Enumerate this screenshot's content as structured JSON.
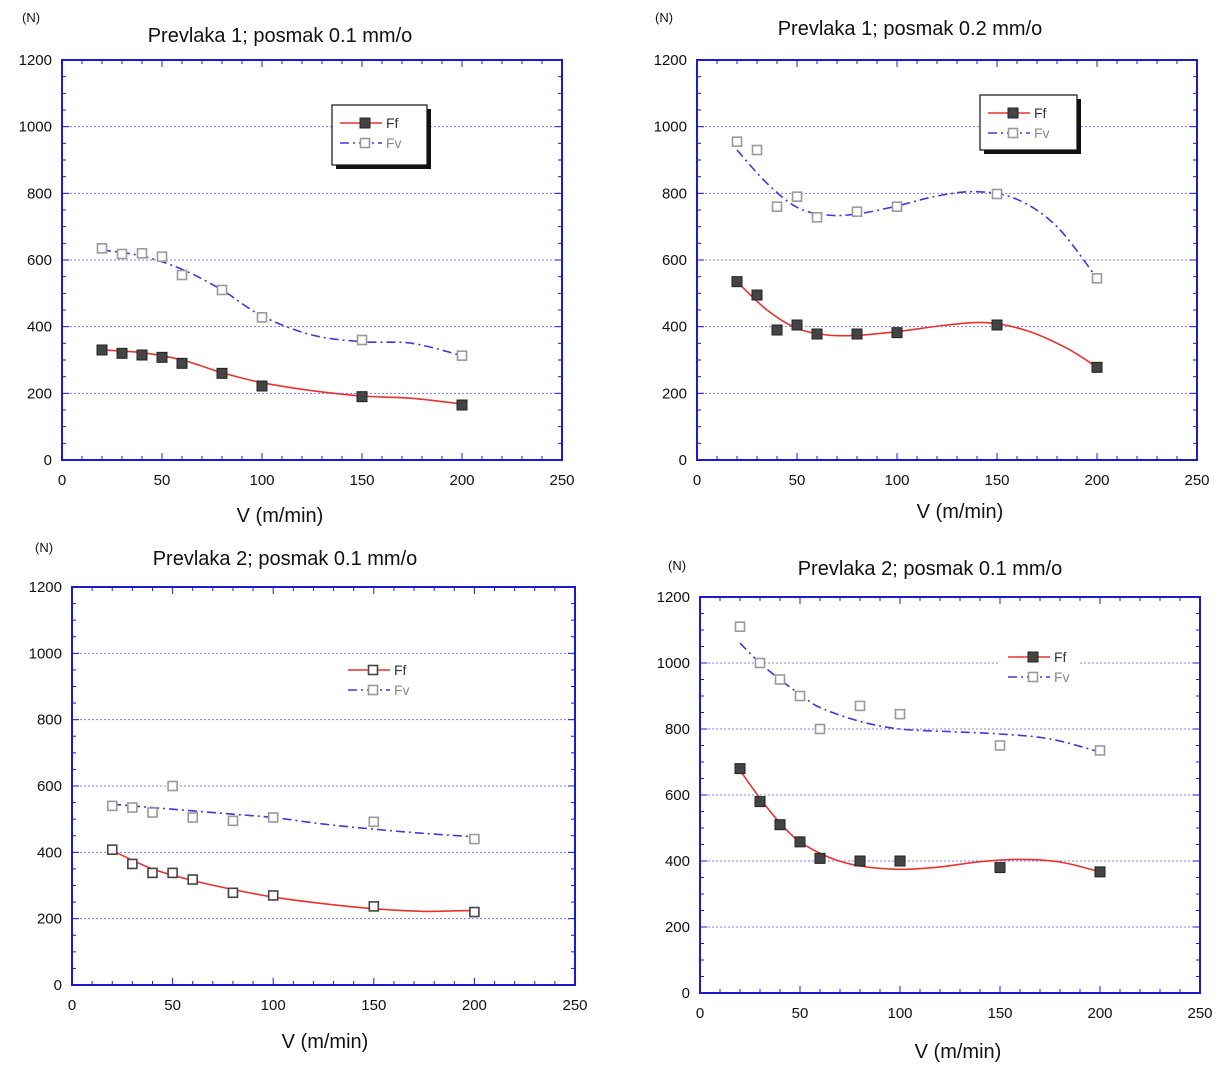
{
  "figure": {
    "colors": {
      "ff_curve": "#e8322e",
      "fv_curve": "#3a3ad8",
      "ff_marker": "#444444",
      "fv_marker": "#9a9a9a",
      "axes": "#1b1bd0",
      "grid": "#7b7bff"
    }
  },
  "chart_data": [
    {
      "type": "line",
      "title": "Prevlaka 1; posmak 0.1 mm/o",
      "unit_label": "(N)",
      "xlabel": "V (m/min)",
      "ylabel": "",
      "xlim": [
        0,
        250
      ],
      "ylim": [
        0,
        1200
      ],
      "x_ticks": [
        "0",
        "50",
        "100",
        "150",
        "200",
        "250"
      ],
      "y_ticks": [
        "0",
        "200",
        "400",
        "600",
        "800",
        "1000",
        "1200"
      ],
      "legend_position": "top-right",
      "legend_style": "boxed",
      "grid": true,
      "series": [
        {
          "name": "Ff",
          "marker": "filled-square",
          "line": "solid",
          "points": [
            [
              20,
              330
            ],
            [
              30,
              320
            ],
            [
              40,
              315
            ],
            [
              50,
              308
            ],
            [
              60,
              290
            ],
            [
              80,
              260
            ],
            [
              100,
              222
            ],
            [
              150,
              190
            ],
            [
              200,
              165
            ]
          ],
          "curve": [
            [
              20,
              330
            ],
            [
              40,
              322
            ],
            [
              60,
              300
            ],
            [
              80,
              262
            ],
            [
              100,
              232
            ],
            [
              125,
              208
            ],
            [
              150,
              192
            ],
            [
              175,
              185
            ],
            [
              200,
              168
            ]
          ]
        },
        {
          "name": "Fv",
          "marker": "open-square",
          "line": "dash-dot",
          "points": [
            [
              20,
              635
            ],
            [
              30,
              618
            ],
            [
              40,
              620
            ],
            [
              50,
              610
            ],
            [
              60,
              555
            ],
            [
              80,
              510
            ],
            [
              100,
              428
            ],
            [
              150,
              360
            ],
            [
              200,
              313
            ]
          ],
          "curve": [
            [
              20,
              630
            ],
            [
              40,
              612
            ],
            [
              60,
              572
            ],
            [
              80,
              510
            ],
            [
              100,
              432
            ],
            [
              125,
              375
            ],
            [
              150,
              355
            ],
            [
              175,
              350
            ],
            [
              200,
              313
            ]
          ]
        }
      ]
    },
    {
      "type": "line",
      "title": "Prevlaka 1; posmak 0.2 mm/o",
      "unit_label": "(N)",
      "xlabel": "V (m/min)",
      "ylabel": "",
      "xlim": [
        0,
        250
      ],
      "ylim": [
        0,
        1200
      ],
      "x_ticks": [
        "0",
        "50",
        "100",
        "150",
        "200",
        "250"
      ],
      "y_ticks": [
        "0",
        "200",
        "400",
        "600",
        "800",
        "1000",
        "1200"
      ],
      "legend_position": "top-right",
      "legend_style": "boxed",
      "grid": true,
      "series": [
        {
          "name": "Ff",
          "marker": "filled-square",
          "line": "solid",
          "points": [
            [
              20,
              535
            ],
            [
              30,
              495
            ],
            [
              40,
              390
            ],
            [
              50,
              405
            ],
            [
              60,
              378
            ],
            [
              80,
              378
            ],
            [
              100,
              382
            ],
            [
              150,
              405
            ],
            [
              200,
              278
            ]
          ],
          "curve": [
            [
              20,
              535
            ],
            [
              35,
              450
            ],
            [
              50,
              395
            ],
            [
              65,
              375
            ],
            [
              80,
              374
            ],
            [
              100,
              385
            ],
            [
              125,
              405
            ],
            [
              145,
              412
            ],
            [
              165,
              388
            ],
            [
              185,
              335
            ],
            [
              200,
              278
            ]
          ]
        },
        {
          "name": "Fv",
          "marker": "open-square",
          "line": "dash-dot",
          "points": [
            [
              20,
              955
            ],
            [
              30,
              930
            ],
            [
              40,
              760
            ],
            [
              50,
              790
            ],
            [
              60,
              728
            ],
            [
              80,
              745
            ],
            [
              100,
              760
            ],
            [
              150,
              798
            ],
            [
              200,
              545
            ]
          ],
          "curve": [
            [
              20,
              930
            ],
            [
              35,
              830
            ],
            [
              50,
              758
            ],
            [
              65,
              735
            ],
            [
              80,
              738
            ],
            [
              100,
              762
            ],
            [
              120,
              792
            ],
            [
              140,
              805
            ],
            [
              160,
              782
            ],
            [
              180,
              700
            ],
            [
              200,
              545
            ]
          ]
        }
      ]
    },
    {
      "type": "line",
      "title": "Prevlaka 2; posmak 0.1 mm/o",
      "unit_label": "(N)",
      "xlabel": "V (m/min)",
      "ylabel": "",
      "xlim": [
        0,
        250
      ],
      "ylim": [
        0,
        1200
      ],
      "x_ticks": [
        "0",
        "50",
        "100",
        "150",
        "200",
        "250"
      ],
      "y_ticks": [
        "0",
        "200",
        "400",
        "600",
        "800",
        "1000",
        "1200"
      ],
      "legend_position": "top-right",
      "legend_style": "plain",
      "grid": true,
      "series": [
        {
          "name": "Ff",
          "marker": "open-square",
          "line": "solid",
          "points": [
            [
              20,
              408
            ],
            [
              30,
              365
            ],
            [
              40,
              338
            ],
            [
              50,
              338
            ],
            [
              60,
              318
            ],
            [
              80,
              278
            ],
            [
              100,
              270
            ],
            [
              150,
              237
            ],
            [
              200,
              220
            ]
          ],
          "curve": [
            [
              20,
              405
            ],
            [
              40,
              350
            ],
            [
              60,
              315
            ],
            [
              80,
              288
            ],
            [
              100,
              265
            ],
            [
              125,
              245
            ],
            [
              150,
              230
            ],
            [
              175,
              222
            ],
            [
              200,
              225
            ]
          ]
        },
        {
          "name": "Fv",
          "marker": "open-square",
          "line": "dash-dot",
          "points": [
            [
              20,
              540
            ],
            [
              30,
              535
            ],
            [
              40,
              520
            ],
            [
              50,
              600
            ],
            [
              60,
              505
            ],
            [
              80,
              495
            ],
            [
              100,
              505
            ],
            [
              150,
              492
            ],
            [
              200,
              440
            ]
          ],
          "curve": [
            [
              20,
              545
            ],
            [
              50,
              530
            ],
            [
              80,
              515
            ],
            [
              100,
              505
            ],
            [
              125,
              485
            ],
            [
              150,
              470
            ],
            [
              175,
              457
            ],
            [
              200,
              447
            ]
          ]
        }
      ]
    },
    {
      "type": "line",
      "title": "Prevlaka 2; posmak 0.1 mm/o",
      "unit_label": "(N)",
      "xlabel": "V (m/min)",
      "ylabel": "",
      "xlim": [
        0,
        250
      ],
      "ylim": [
        0,
        1200
      ],
      "x_ticks": [
        "0",
        "50",
        "100",
        "150",
        "200",
        "250"
      ],
      "y_ticks": [
        "0",
        "200",
        "400",
        "600",
        "800",
        "1000",
        "1200"
      ],
      "legend_position": "top-right",
      "legend_style": "plain",
      "grid": true,
      "series": [
        {
          "name": "Ff",
          "marker": "filled-square",
          "line": "solid",
          "points": [
            [
              20,
              680
            ],
            [
              30,
              580
            ],
            [
              40,
              510
            ],
            [
              50,
              458
            ],
            [
              60,
              408
            ],
            [
              80,
              400
            ],
            [
              100,
              400
            ],
            [
              150,
              380
            ],
            [
              200,
              367
            ]
          ],
          "curve": [
            [
              20,
              675
            ],
            [
              30,
              590
            ],
            [
              40,
              515
            ],
            [
              50,
              458
            ],
            [
              65,
              410
            ],
            [
              80,
              385
            ],
            [
              100,
              375
            ],
            [
              120,
              382
            ],
            [
              140,
              398
            ],
            [
              160,
              405
            ],
            [
              180,
              397
            ],
            [
              200,
              367
            ]
          ]
        },
        {
          "name": "Fv",
          "marker": "open-square",
          "line": "dash-dot",
          "points": [
            [
              20,
              1110
            ],
            [
              30,
              1000
            ],
            [
              40,
              950
            ],
            [
              50,
              900
            ],
            [
              60,
              800
            ],
            [
              80,
              870
            ],
            [
              100,
              845
            ],
            [
              150,
              750
            ],
            [
              200,
              735
            ]
          ],
          "curve": [
            [
              20,
              1060
            ],
            [
              30,
              1000
            ],
            [
              40,
              950
            ],
            [
              50,
              905
            ],
            [
              60,
              865
            ],
            [
              80,
              823
            ],
            [
              100,
              800
            ],
            [
              125,
              792
            ],
            [
              150,
              785
            ],
            [
              175,
              770
            ],
            [
              200,
              730
            ]
          ]
        }
      ]
    }
  ]
}
